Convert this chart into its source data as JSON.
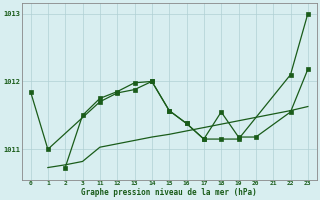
{
  "background_color": "#d8eef0",
  "grid_color": "#b0d0d4",
  "line_color": "#1a5c1a",
  "x_labels": [
    "0",
    "1",
    "2",
    "3",
    "11",
    "12",
    "13",
    "14",
    "15",
    "16",
    "17",
    "18",
    "19",
    "20",
    "21",
    "22",
    "23"
  ],
  "x_hours": [
    0,
    1,
    2,
    3,
    11,
    12,
    13,
    14,
    15,
    16,
    17,
    18,
    19,
    20,
    21,
    22,
    23
  ],
  "ylim": [
    1010.55,
    1013.15
  ],
  "yticks": [
    1011,
    1012,
    1013
  ],
  "xlabel": "Graphe pression niveau de la mer (hPa)",
  "series1_hours": [
    0,
    1,
    11,
    12,
    13,
    14,
    15,
    16,
    17,
    18,
    19,
    22,
    23
  ],
  "series1_y": [
    1011.85,
    1011.0,
    1011.7,
    1011.83,
    1011.88,
    1012.0,
    1011.57,
    1011.38,
    1011.15,
    1011.15,
    1011.15,
    1012.1,
    1013.0
  ],
  "series2_hours": [
    1,
    2,
    3,
    11,
    12,
    13,
    14,
    15,
    16,
    17,
    18,
    19,
    20,
    21,
    22,
    23
  ],
  "series2_y": [
    1010.73,
    1010.77,
    1010.82,
    1011.03,
    1011.08,
    1011.13,
    1011.18,
    1011.22,
    1011.27,
    1011.32,
    1011.37,
    1011.42,
    1011.47,
    1011.52,
    1011.57,
    1011.63
  ],
  "series3_hours": [
    2,
    3,
    11,
    12,
    13,
    14,
    15,
    16,
    17,
    18,
    19,
    20,
    22,
    23
  ],
  "series3_y": [
    1010.73,
    1011.5,
    1011.75,
    1011.85,
    1011.98,
    1012.0,
    1011.57,
    1011.38,
    1011.15,
    1011.55,
    1011.18,
    1011.18,
    1011.55,
    1012.18
  ]
}
